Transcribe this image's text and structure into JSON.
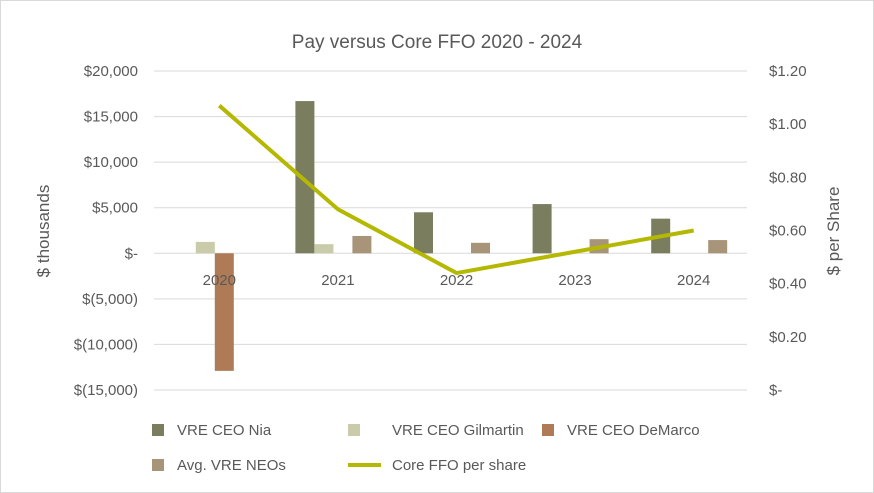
{
  "chart_data": {
    "type": "bar",
    "title": "Pay versus Core FFO 2020 - 2024",
    "categories": [
      "2020",
      "2021",
      "2022",
      "2023",
      "2024"
    ],
    "ylabel": "$ thousands",
    "y2label": "$ per Share",
    "ylim": [
      -15000,
      20000
    ],
    "y2lim": [
      0,
      1.2
    ],
    "yticks": [
      "$20,000",
      "$15,000",
      "$10,000",
      "$5,000",
      "$-",
      "$(5,000)",
      "$(10,000)",
      "$(15,000)"
    ],
    "y2ticks": [
      "$1.20",
      "$1.00",
      "$0.80",
      "$0.60",
      "$0.40",
      "$0.20",
      "$-"
    ],
    "grid": true,
    "legend_position": "bottom",
    "series": [
      {
        "name": "VRE CEO Nia",
        "type": "bar",
        "axis": "left",
        "color": "#7a7d5e",
        "values": [
          null,
          16700,
          4500,
          5400,
          3800
        ]
      },
      {
        "name": "VRE CEO Gilmartin",
        "type": "bar",
        "axis": "left",
        "color": "#c9cbaa",
        "values": [
          1250,
          1000,
          null,
          null,
          null
        ]
      },
      {
        "name": "VRE CEO DeMarco",
        "type": "bar",
        "axis": "left",
        "color": "#ae7b56",
        "values": [
          -12900,
          null,
          null,
          null,
          null
        ]
      },
      {
        "name": "Avg. VRE NEOs",
        "type": "bar",
        "axis": "left",
        "color": "#a89479",
        "values": [
          null,
          1900,
          1150,
          1550,
          1450
        ]
      },
      {
        "name": "Core FFO per share",
        "type": "line",
        "axis": "right",
        "color": "#b5b800",
        "values": [
          1.07,
          0.68,
          0.44,
          0.52,
          0.6
        ]
      }
    ]
  }
}
